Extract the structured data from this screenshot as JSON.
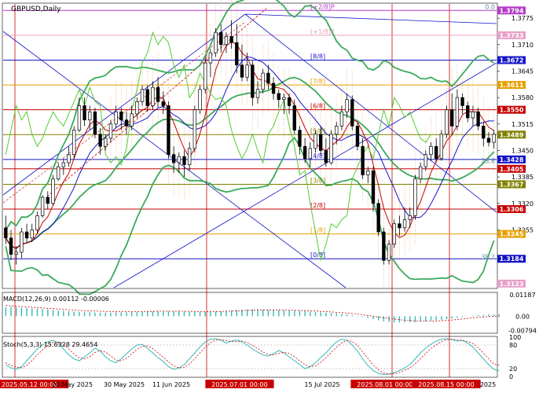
{
  "chart_data": [
    {
      "type": "candlestick",
      "title": "GBPUSD,Daily",
      "ylim": [
        1.3113,
        1.381
      ],
      "price_ticks": [
        "1.3775",
        "1.3710",
        "1.3645",
        "1.3580",
        "1.3515",
        "1.3450",
        "1.3385",
        "1.3320",
        "1.3255"
      ],
      "price_tags": [
        {
          "label": "1.3794",
          "color": "#b43cc8"
        },
        {
          "label": "1.3733",
          "color": "#e8a0c8"
        },
        {
          "label": "1.3672",
          "color": "#1414c8"
        },
        {
          "label": "1.3611",
          "color": "#e8a000"
        },
        {
          "label": "1.3550",
          "color": "#c80000"
        },
        {
          "label": "1.3489",
          "color": "#808000"
        },
        {
          "label": "1.3428",
          "color": "#1414c8"
        },
        {
          "label": "1.3405",
          "color": "#c80000"
        },
        {
          "label": "1.3367",
          "color": "#808000"
        },
        {
          "label": "1.3306",
          "color": "#c80000"
        },
        {
          "label": "1.3245",
          "color": "#e8a000"
        },
        {
          "label": "1.3184",
          "color": "#1414c8"
        },
        {
          "label": "1.3123",
          "color": "#e8a0c8"
        }
      ],
      "murrey_levels": [
        {
          "label": "[+2/8]P",
          "value": 1.3794,
          "color": "#b43cc8"
        },
        {
          "label": "[+1/8]P",
          "value": 1.3733,
          "color": "#e8a0c8"
        },
        {
          "label": "[8/8]",
          "value": 1.3672,
          "color": "#1414c8"
        },
        {
          "label": "[7/8]",
          "value": 1.3611,
          "color": "#e8a000"
        },
        {
          "label": "[6/8]",
          "value": 1.355,
          "color": "#c80000"
        },
        {
          "label": "[5/8]",
          "value": 1.3489,
          "color": "#808000"
        },
        {
          "label": "[4/8]",
          "value": 1.3428,
          "color": "#1414c8"
        },
        {
          "label": "[3/8]",
          "value": 1.3367,
          "color": "#808000"
        },
        {
          "label": "[2/8]",
          "value": 1.3306,
          "color": "#c80000"
        },
        {
          "label": "[1/8]",
          "value": 1.3245,
          "color": "#e8a000"
        },
        {
          "label": "[0/8]",
          "value": 1.3184,
          "color": "#1414c8"
        }
      ],
      "extra_levels": [
        {
          "value": 1.3405,
          "color": "#c80000"
        }
      ],
      "fib_labels": [
        {
          "label": "0.0",
          "value": 1.3794
        },
        {
          "label": "23.6",
          "value": 1.3415
        },
        {
          "label": "38.2",
          "value": 1.318
        }
      ],
      "candles": [
        [
          1.326,
          1.329,
          1.322,
          1.3235
        ],
        [
          1.3235,
          1.3255,
          1.318,
          1.3195
        ],
        [
          1.3195,
          1.3215,
          1.317,
          1.32
        ],
        [
          1.32,
          1.326,
          1.3185,
          1.325
        ],
        [
          1.325,
          1.327,
          1.3225,
          1.3235
        ],
        [
          1.3235,
          1.327,
          1.3225,
          1.3255
        ],
        [
          1.3255,
          1.33,
          1.3245,
          1.329
        ],
        [
          1.329,
          1.334,
          1.3285,
          1.3335
        ],
        [
          1.3335,
          1.335,
          1.3305,
          1.332
        ],
        [
          1.332,
          1.339,
          1.3315,
          1.338
        ],
        [
          1.338,
          1.342,
          1.3375,
          1.341
        ],
        [
          1.341,
          1.343,
          1.339,
          1.342
        ],
        [
          1.342,
          1.346,
          1.341,
          1.344
        ],
        [
          1.344,
          1.351,
          1.343,
          1.35
        ],
        [
          1.35,
          1.358,
          1.3495,
          1.356
        ],
        [
          1.356,
          1.358,
          1.351,
          1.3525
        ],
        [
          1.3525,
          1.356,
          1.35,
          1.3545
        ],
        [
          1.3545,
          1.3555,
          1.348,
          1.349
        ],
        [
          1.349,
          1.3505,
          1.344,
          1.346
        ],
        [
          1.346,
          1.349,
          1.345,
          1.348
        ],
        [
          1.348,
          1.3525,
          1.347,
          1.3515
        ],
        [
          1.3515,
          1.356,
          1.3505,
          1.3545
        ],
        [
          1.3545,
          1.3555,
          1.35,
          1.3525
        ],
        [
          1.3525,
          1.3545,
          1.349,
          1.351
        ],
        [
          1.351,
          1.356,
          1.35,
          1.354
        ],
        [
          1.354,
          1.358,
          1.353,
          1.357
        ],
        [
          1.357,
          1.361,
          1.356,
          1.36
        ],
        [
          1.36,
          1.361,
          1.3545,
          1.356
        ],
        [
          1.356,
          1.362,
          1.355,
          1.3605
        ],
        [
          1.3605,
          1.363,
          1.3555,
          1.357
        ],
        [
          1.357,
          1.3595,
          1.354,
          1.356
        ],
        [
          1.356,
          1.357,
          1.343,
          1.344
        ],
        [
          1.344,
          1.346,
          1.3395,
          1.342
        ],
        [
          1.342,
          1.3445,
          1.3395,
          1.3435
        ],
        [
          1.3435,
          1.345,
          1.3385,
          1.3415
        ],
        [
          1.3415,
          1.347,
          1.34,
          1.3455
        ],
        [
          1.3455,
          1.356,
          1.3445,
          1.355
        ],
        [
          1.355,
          1.361,
          1.354,
          1.36
        ],
        [
          1.36,
          1.368,
          1.359,
          1.3665
        ],
        [
          1.3665,
          1.37,
          1.363,
          1.369
        ],
        [
          1.369,
          1.375,
          1.368,
          1.374
        ],
        [
          1.374,
          1.376,
          1.369,
          1.371
        ],
        [
          1.371,
          1.374,
          1.369,
          1.373
        ],
        [
          1.373,
          1.377,
          1.37,
          1.3715
        ],
        [
          1.3715,
          1.376,
          1.364,
          1.366
        ],
        [
          1.366,
          1.371,
          1.362,
          1.363
        ],
        [
          1.363,
          1.369,
          1.362,
          1.366
        ],
        [
          1.366,
          1.367,
          1.356,
          1.358
        ],
        [
          1.358,
          1.362,
          1.3565,
          1.36
        ],
        [
          1.36,
          1.365,
          1.359,
          1.364
        ],
        [
          1.364,
          1.366,
          1.36,
          1.3615
        ],
        [
          1.3615,
          1.363,
          1.3575,
          1.359
        ],
        [
          1.359,
          1.36,
          1.3555,
          1.3575
        ],
        [
          1.3575,
          1.359,
          1.354,
          1.358
        ],
        [
          1.358,
          1.359,
          1.354,
          1.356
        ],
        [
          1.356,
          1.3575,
          1.349,
          1.35
        ],
        [
          1.35,
          1.351,
          1.344,
          1.346
        ],
        [
          1.346,
          1.348,
          1.342,
          1.343
        ],
        [
          1.343,
          1.347,
          1.341,
          1.3455
        ],
        [
          1.3455,
          1.35,
          1.3445,
          1.349
        ],
        [
          1.349,
          1.351,
          1.344,
          1.345
        ],
        [
          1.345,
          1.348,
          1.341,
          1.342
        ],
        [
          1.342,
          1.35,
          1.3415,
          1.349
        ],
        [
          1.349,
          1.352,
          1.3465,
          1.351
        ],
        [
          1.351,
          1.356,
          1.35,
          1.3545
        ],
        [
          1.3545,
          1.359,
          1.353,
          1.3575
        ],
        [
          1.3575,
          1.3585,
          1.35,
          1.351
        ],
        [
          1.351,
          1.352,
          1.345,
          1.346
        ],
        [
          1.346,
          1.348,
          1.338,
          1.339
        ],
        [
          1.339,
          1.341,
          1.337,
          1.34
        ],
        [
          1.34,
          1.341,
          1.33,
          1.332
        ],
        [
          1.332,
          1.333,
          1.324,
          1.325
        ],
        [
          1.325,
          1.326,
          1.317,
          1.318
        ],
        [
          1.318,
          1.323,
          1.317,
          1.322
        ],
        [
          1.322,
          1.328,
          1.321,
          1.327
        ],
        [
          1.327,
          1.329,
          1.324,
          1.326
        ],
        [
          1.326,
          1.331,
          1.325,
          1.328
        ],
        [
          1.328,
          1.331,
          1.326,
          1.329
        ],
        [
          1.329,
          1.339,
          1.328,
          1.338
        ],
        [
          1.338,
          1.342,
          1.337,
          1.341
        ],
        [
          1.341,
          1.345,
          1.34,
          1.344
        ],
        [
          1.344,
          1.347,
          1.3425,
          1.346
        ],
        [
          1.346,
          1.348,
          1.342,
          1.343
        ],
        [
          1.343,
          1.35,
          1.3425,
          1.349
        ],
        [
          1.349,
          1.356,
          1.348,
          1.355
        ],
        [
          1.355,
          1.359,
          1.349,
          1.351
        ],
        [
          1.351,
          1.36,
          1.35,
          1.358
        ],
        [
          1.358,
          1.359,
          1.354,
          1.356
        ],
        [
          1.356,
          1.357,
          1.352,
          1.353
        ],
        [
          1.353,
          1.356,
          1.351,
          1.3545
        ],
        [
          1.3545,
          1.3555,
          1.35,
          1.351
        ],
        [
          1.351,
          1.352,
          1.346,
          1.348
        ],
        [
          1.348,
          1.3495,
          1.346,
          1.347
        ],
        [
          1.347,
          1.35,
          1.3455,
          1.349
        ]
      ],
      "time_labels": [
        "2025.05.12 00:00",
        "20 May 2025",
        "30 May 2025",
        "11 Jun 2025",
        "2025.07.01 00:00",
        "15 Jul 2025",
        "2025.08.01 00:00",
        "2025.08.15 00:00",
        "2025"
      ]
    },
    {
      "type": "histogram",
      "title": "MACD(12,26,9) 0.00112 -0.00006",
      "y_ticks": [
        "0.01187",
        "0.00",
        "-0.00794"
      ],
      "ylim": [
        -0.009,
        0.0128
      ],
      "histogram": [
        0.005,
        0.0052,
        0.005,
        0.0048,
        0.0046,
        0.0044,
        0.0042,
        0.004,
        0.0038,
        0.0035,
        0.0032,
        0.003,
        0.0028,
        0.0026,
        0.0024,
        0.0023,
        0.0022,
        0.0021,
        0.002,
        0.002,
        0.002,
        0.0021,
        0.0022,
        0.0022,
        0.0023,
        0.0024,
        0.0025,
        0.0026,
        0.0027,
        0.0028,
        0.0028,
        0.0028,
        0.0028,
        0.0027,
        0.0026,
        0.0025,
        0.0024,
        0.0024,
        0.0024,
        0.0025,
        0.0026,
        0.0028,
        0.003,
        0.0032,
        0.0034,
        0.0036,
        0.0038,
        0.0038,
        0.0038,
        0.0037,
        0.0036,
        0.0035,
        0.0034,
        0.0033,
        0.0032,
        0.0031,
        0.003,
        0.0028,
        0.0026,
        0.0024,
        0.0022,
        0.002,
        0.0018,
        0.0016,
        0.0013,
        0.001,
        0.0006,
        0.0002,
        -0.0004,
        -0.001,
        -0.0016,
        -0.0022,
        -0.0028,
        -0.0032,
        -0.0034,
        -0.0035,
        -0.0034,
        -0.0033,
        -0.0032,
        -0.003,
        -0.0028,
        -0.0025,
        -0.0022,
        -0.002,
        -0.0016,
        -0.0012,
        -0.0008,
        -0.0004,
        0.0,
        0.0003,
        0.0006,
        0.0008,
        0.001,
        0.0011,
        0.0012
      ],
      "signal": [
        0.006,
        0.0058,
        0.0056,
        0.0054,
        0.0052,
        0.005,
        0.0048,
        0.0046,
        0.0044,
        0.0042,
        0.004,
        0.0038,
        0.0036,
        0.0034,
        0.0032,
        0.0031,
        0.003,
        0.0029,
        0.0028,
        0.0027,
        0.0026,
        0.0026,
        0.0026,
        0.0026,
        0.0026,
        0.0026,
        0.0026,
        0.0027,
        0.0027,
        0.0028,
        0.0028,
        0.0028,
        0.0028,
        0.0028,
        0.0028,
        0.0027,
        0.0027,
        0.0026,
        0.0026,
        0.0026,
        0.0026,
        0.0027,
        0.0028,
        0.0029,
        0.003,
        0.0031,
        0.0033,
        0.0034,
        0.0035,
        0.0035,
        0.0035,
        0.0035,
        0.0035,
        0.0034,
        0.0034,
        0.0033,
        0.0032,
        0.0031,
        0.003,
        0.0029,
        0.0027,
        0.0026,
        0.0024,
        0.0022,
        0.002,
        0.0018,
        0.0015,
        0.0012,
        0.0008,
        0.0004,
        0.0,
        -0.0004,
        -0.0008,
        -0.0012,
        -0.0016,
        -0.0019,
        -0.0022,
        -0.0024,
        -0.0026,
        -0.0027,
        -0.0027,
        -0.0027,
        -0.0026,
        -0.0025,
        -0.0023,
        -0.0021,
        -0.0018,
        -0.0015,
        -0.0012,
        -0.0009,
        -0.0006,
        -0.0004,
        -0.0002,
        -0.0001,
        -0.0001
      ]
    },
    {
      "type": "line",
      "title": "Stoch(5,3,3) 15.6328 29.4654",
      "y_ticks": [
        "100",
        "80",
        "20",
        "0"
      ],
      "ylim": [
        0,
        100
      ],
      "k": [
        30,
        22,
        18,
        25,
        40,
        55,
        70,
        80,
        88,
        92,
        85,
        70,
        55,
        45,
        40,
        50,
        60,
        72,
        65,
        50,
        40,
        35,
        45,
        58,
        70,
        80,
        82,
        72,
        60,
        48,
        38,
        25,
        18,
        22,
        30,
        45,
        60,
        75,
        88,
        95,
        96,
        92,
        85,
        90,
        93,
        88,
        80,
        70,
        62,
        55,
        52,
        58,
        66,
        60,
        50,
        40,
        30,
        20,
        25,
        35,
        48,
        60,
        75,
        88,
        95,
        92,
        80,
        65,
        45,
        28,
        15,
        8,
        5,
        6,
        10,
        15,
        22,
        30,
        45,
        60,
        72,
        82,
        90,
        95,
        96,
        94,
        90,
        92,
        85,
        75,
        60,
        45,
        30,
        18,
        15
      ],
      "d": [
        35,
        28,
        24,
        22,
        28,
        40,
        55,
        68,
        79,
        87,
        88,
        82,
        70,
        57,
        47,
        45,
        50,
        61,
        66,
        62,
        52,
        42,
        40,
        46,
        58,
        69,
        77,
        78,
        71,
        60,
        49,
        37,
        27,
        22,
        23,
        32,
        45,
        60,
        74,
        86,
        93,
        94,
        91,
        89,
        89,
        90,
        87,
        79,
        71,
        62,
        56,
        55,
        59,
        61,
        59,
        50,
        40,
        30,
        25,
        27,
        36,
        48,
        61,
        74,
        86,
        92,
        89,
        79,
        63,
        46,
        29,
        17,
        9,
        6,
        7,
        10,
        16,
        22,
        32,
        45,
        59,
        71,
        81,
        89,
        94,
        95,
        93,
        92,
        89,
        84,
        73,
        60,
        45,
        31,
        29
      ]
    }
  ]
}
